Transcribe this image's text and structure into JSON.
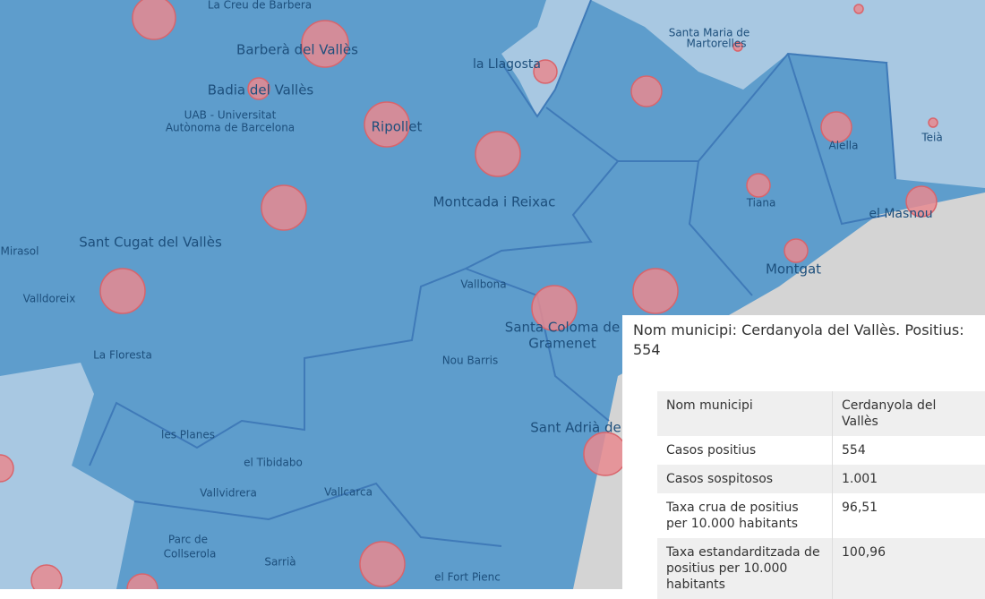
{
  "map": {
    "labels": [
      "La Creu de Barbera",
      "Barberà del Vallès",
      "Badia del Vallès",
      "UAB - Universitat",
      "Autònoma de Barcelona",
      "Ripollet",
      "la Llagosta",
      "Santa Maria de",
      "Martorelles",
      "Montcada i Reixac",
      "Alella",
      "Teià",
      "Tiana",
      "el Masnou",
      "Montgat",
      "Sant Cugat del Vallès",
      "Mirasol",
      "Valldoreix",
      "Vallbona",
      "Santa Coloma de",
      "Gramenet",
      "La Floresta",
      "Nou Barris",
      "Sant Adrià de",
      "les Planes",
      "el Tibidabo",
      "Vallvidrera",
      "Vallcarca",
      "Parc de",
      "Collserola",
      "Sarrià",
      "el Fort Pienc"
    ]
  },
  "popup": {
    "title": "Nom municipi: Cerdanyola del Vallès. Positius: 554",
    "table": {
      "rows": [
        [
          "Nom municipi",
          "Cerdanyola del Vallès"
        ],
        [
          "Casos positius",
          "554"
        ],
        [
          "Casos sospitosos",
          "1.001"
        ],
        [
          "Taxa crua de positius per 10.000 habitants",
          "96,51"
        ],
        [
          "Taxa estandarditzada de positius per 10.000 habitants",
          "100,96"
        ]
      ]
    }
  }
}
